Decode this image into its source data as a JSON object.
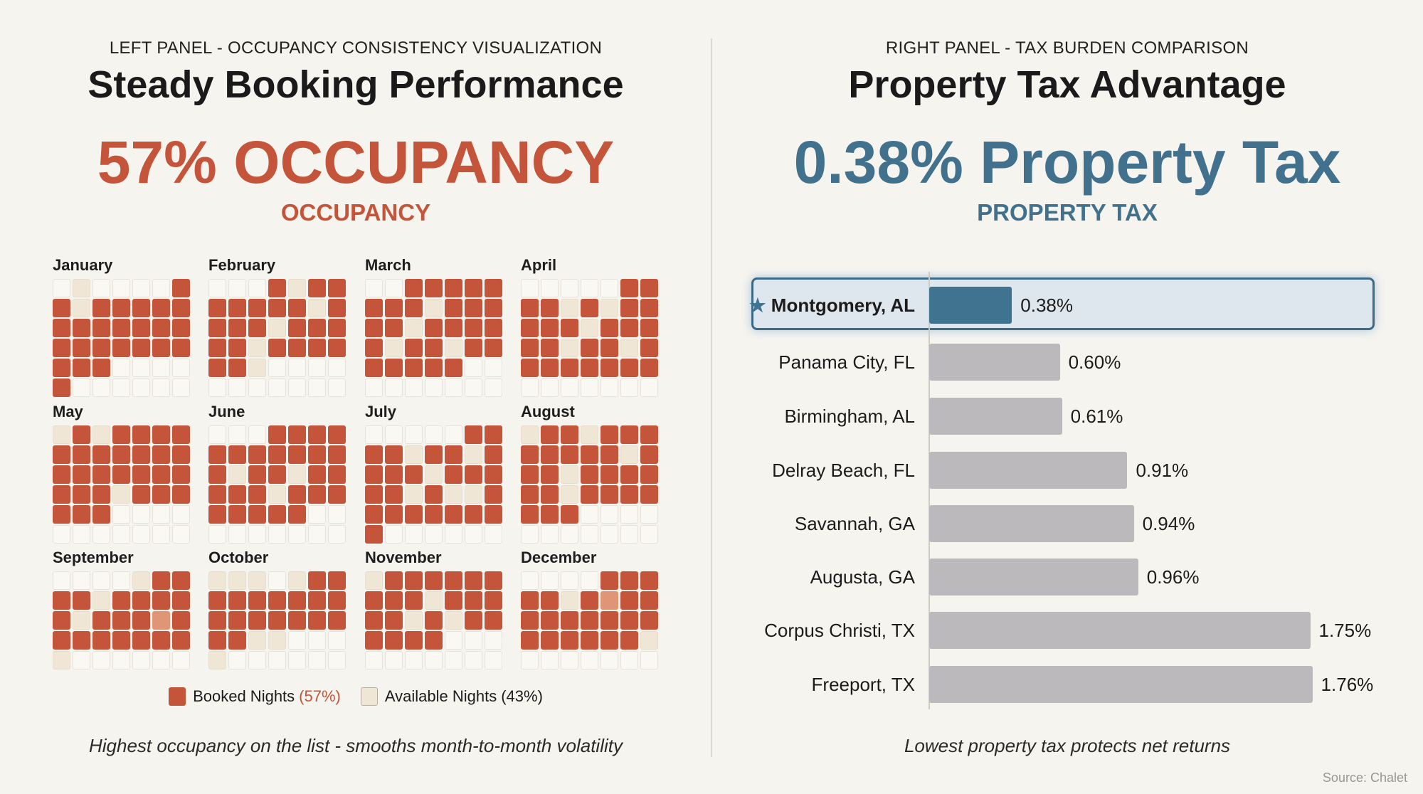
{
  "left": {
    "subtitle": "LEFT PANEL - OCCUPANCY CONSISTENCY VISUALIZATION",
    "title": "Steady Booking Performance",
    "headline": "57% OCCUPANCY",
    "headline_sub": "OCCUPANCY",
    "caption": "Highest occupancy on the list - smooths month-to-month volatility",
    "legend": {
      "booked_label": "Booked Nights",
      "booked_pct": "(57%)",
      "available_label": "Available Nights",
      "available_pct": "(43%)"
    },
    "colors": {
      "booked": "#c4553a",
      "available": "#efe6d6"
    }
  },
  "chart_data": [
    {
      "type": "heatmap",
      "legend_codes": {
        "b": "Booked",
        "l": "Booked (light)",
        "a": "Available",
        ".": "Empty"
      },
      "months": [
        {
          "name": "January",
          "rows": [
            ".a....b",
            "babbbbb",
            "bbbbbbb",
            "bbbbbbb",
            "bbb....",
            "b......"
          ]
        },
        {
          "name": "February",
          "rows": [
            "...babb",
            "bbbbbab",
            "bbbabbb",
            "bbabbbb",
            "bba....",
            "......."
          ]
        },
        {
          "name": "March",
          "rows": [
            "..bbbbb",
            "bbbabbb",
            "bbabbbb",
            "babbabb",
            "bbbbb..",
            "......."
          ]
        },
        {
          "name": "April",
          "rows": [
            ".....bb",
            "bbababb",
            "bbbabbb",
            "bbabbab",
            "bbbbbbb",
            "......."
          ]
        },
        {
          "name": "May",
          "rows": [
            "ababbbb",
            "bbbbbbb",
            "bbbbbbb",
            "bbbabbb",
            "bbb....",
            "......."
          ]
        },
        {
          "name": "June",
          "rows": [
            "...bbbb",
            "bbbbbbb",
            "babbabb",
            "bbbabbb",
            "bbbbb..",
            "......."
          ]
        },
        {
          "name": "July",
          "rows": [
            ".....bb",
            "bbabbab",
            "bbbabbb",
            "bbabaab",
            "bbbbbbb",
            "b......"
          ]
        },
        {
          "name": "August",
          "rows": [
            "abbabbb",
            "bbbbbab",
            "bbabbbb",
            "bbabbbb",
            "bbb....",
            "......."
          ]
        },
        {
          "name": "September",
          "rows": [
            "....abb",
            "bbabbbb",
            "babbblb",
            "bbbbbbb",
            "a......"
          ]
        },
        {
          "name": "October",
          "rows": [
            "aaa.abb",
            "bbbbbbb",
            "bbbbbbb",
            "bbaa...",
            "a......"
          ]
        },
        {
          "name": "November",
          "rows": [
            "abbbbbb",
            "bbbabbb",
            "bbababb",
            "bbbb...",
            "......."
          ]
        },
        {
          "name": "December",
          "rows": [
            "....bbb",
            "bbablbb",
            "bbbbbbb",
            "bbbbbba",
            "......."
          ]
        }
      ]
    },
    {
      "type": "bar",
      "orientation": "horizontal",
      "categories": [
        "Montgomery, AL",
        "Panama City, FL",
        "Birmingham, AL",
        "Delray Beach, FL",
        "Savannah, GA",
        "Augusta, GA",
        "Corpus Christi, TX",
        "Freeport, TX"
      ],
      "values": [
        0.38,
        0.6,
        0.61,
        0.91,
        0.94,
        0.96,
        1.75,
        1.76
      ],
      "value_labels": [
        "0.38%",
        "0.60%",
        "0.61%",
        "0.91%",
        "0.94%",
        "0.96%",
        "1.75%",
        "1.76%"
      ],
      "highlight": "Montgomery, AL",
      "highlight_icon": "star-icon",
      "colors": {
        "highlight": "#3f7390",
        "other": "#bcb9bc",
        "highlight_box": "#dfe7ee"
      }
    }
  ],
  "right": {
    "subtitle": "RIGHT PANEL - TAX BURDEN COMPARISON",
    "title": "Property Tax Advantage",
    "headline": "0.38% Property Tax",
    "headline_sub": "PROPERTY TAX",
    "caption": "Lowest property tax protects net returns",
    "colors": {
      "accent": "#41718d"
    }
  },
  "source": "Source: Chalet"
}
